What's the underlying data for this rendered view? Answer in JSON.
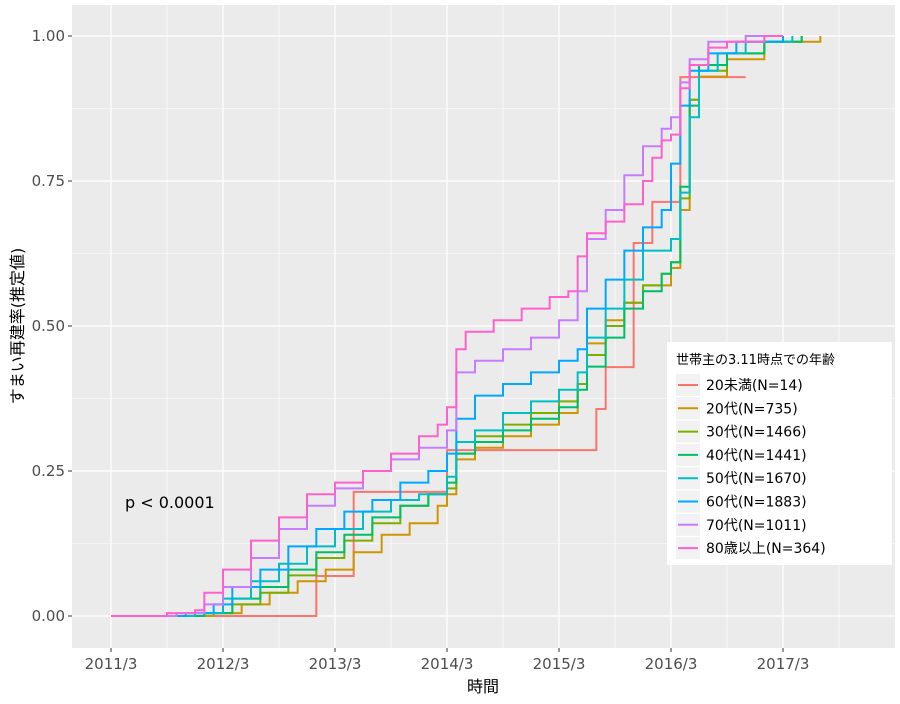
{
  "chart_data": {
    "type": "line",
    "step": true,
    "title": "",
    "xlabel": "時間",
    "ylabel": "すまい再建率(推定値)",
    "x_ticks": [
      "2011/3",
      "2012/3",
      "2013/3",
      "2014/3",
      "2015/3",
      "2016/3",
      "2017/3"
    ],
    "y_ticks": [
      "0.00",
      "0.25",
      "0.50",
      "0.75",
      "1.00"
    ],
    "xlim": [
      "2010-11",
      "2018-03"
    ],
    "ylim": [
      -0.055,
      1.053
    ],
    "grid": true,
    "annotation": "p < 0.0001",
    "legend": {
      "title": "世帯主の3.11時点での年齢",
      "placement": "right"
    },
    "series": [
      {
        "name": "20未満(N=14)",
        "color": "#F8766D",
        "points": [
          [
            "2011-03",
            0
          ],
          [
            "2013-01",
            0.069
          ],
          [
            "2013-05",
            0.214
          ],
          [
            "2014-03",
            0.286
          ],
          [
            "2015-07",
            0.357
          ],
          [
            "2015-08",
            0.429
          ],
          [
            "2015-11",
            0.643
          ],
          [
            "2016-01",
            0.714
          ],
          [
            "2016-04",
            0.929
          ],
          [
            "2016-11",
            0.929
          ]
        ]
      },
      {
        "name": "20代(N=735)",
        "color": "#CD9600",
        "points": [
          [
            "2011-03",
            0
          ],
          [
            "2012-02",
            0.005
          ],
          [
            "2012-05",
            0.02
          ],
          [
            "2012-08",
            0.04
          ],
          [
            "2012-11",
            0.06
          ],
          [
            "2013-02",
            0.08
          ],
          [
            "2013-05",
            0.11
          ],
          [
            "2013-08",
            0.14
          ],
          [
            "2013-11",
            0.16
          ],
          [
            "2014-02",
            0.19
          ],
          [
            "2014-03",
            0.21
          ],
          [
            "2014-04",
            0.27
          ],
          [
            "2014-06",
            0.29
          ],
          [
            "2014-09",
            0.31
          ],
          [
            "2014-12",
            0.33
          ],
          [
            "2015-03",
            0.35
          ],
          [
            "2015-05",
            0.4
          ],
          [
            "2015-06",
            0.47
          ],
          [
            "2015-08",
            0.51
          ],
          [
            "2015-10",
            0.54
          ],
          [
            "2015-12",
            0.57
          ],
          [
            "2016-03",
            0.6
          ],
          [
            "2016-04",
            0.7
          ],
          [
            "2016-05",
            0.89
          ],
          [
            "2016-06",
            0.93
          ],
          [
            "2016-09",
            0.96
          ],
          [
            "2017-01",
            0.99
          ],
          [
            "2017-07",
            1.0
          ],
          [
            "2017-07",
            1.0
          ]
        ]
      },
      {
        "name": "30代(N=1466)",
        "color": "#7CAE00",
        "points": [
          [
            "2011-03",
            0
          ],
          [
            "2012-01",
            0.005
          ],
          [
            "2012-04",
            0.02
          ],
          [
            "2012-07",
            0.04
          ],
          [
            "2012-10",
            0.07
          ],
          [
            "2013-01",
            0.1
          ],
          [
            "2013-04",
            0.13
          ],
          [
            "2013-07",
            0.16
          ],
          [
            "2013-10",
            0.19
          ],
          [
            "2014-01",
            0.21
          ],
          [
            "2014-03",
            0.22
          ],
          [
            "2014-04",
            0.28
          ],
          [
            "2014-06",
            0.31
          ],
          [
            "2014-09",
            0.33
          ],
          [
            "2014-12",
            0.35
          ],
          [
            "2015-03",
            0.37
          ],
          [
            "2015-05",
            0.4
          ],
          [
            "2015-06",
            0.45
          ],
          [
            "2015-08",
            0.5
          ],
          [
            "2015-10",
            0.54
          ],
          [
            "2015-12",
            0.57
          ],
          [
            "2016-02",
            0.59
          ],
          [
            "2016-03",
            0.61
          ],
          [
            "2016-04",
            0.72
          ],
          [
            "2016-05",
            0.89
          ],
          [
            "2016-06",
            0.94
          ],
          [
            "2016-09",
            0.97
          ],
          [
            "2017-01",
            0.99
          ],
          [
            "2017-05",
            1.0
          ]
        ]
      },
      {
        "name": "40代(N=1441)",
        "color": "#00BE67",
        "points": [
          [
            "2011-03",
            0
          ],
          [
            "2012-01",
            0.005
          ],
          [
            "2012-04",
            0.03
          ],
          [
            "2012-07",
            0.05
          ],
          [
            "2012-10",
            0.08
          ],
          [
            "2013-01",
            0.11
          ],
          [
            "2013-04",
            0.14
          ],
          [
            "2013-07",
            0.17
          ],
          [
            "2013-10",
            0.19
          ],
          [
            "2014-01",
            0.21
          ],
          [
            "2014-03",
            0.23
          ],
          [
            "2014-04",
            0.28
          ],
          [
            "2014-06",
            0.3
          ],
          [
            "2014-09",
            0.32
          ],
          [
            "2014-12",
            0.34
          ],
          [
            "2015-03",
            0.36
          ],
          [
            "2015-05",
            0.39
          ],
          [
            "2015-06",
            0.43
          ],
          [
            "2015-08",
            0.48
          ],
          [
            "2015-10",
            0.53
          ],
          [
            "2015-12",
            0.56
          ],
          [
            "2016-02",
            0.59
          ],
          [
            "2016-03",
            0.61
          ],
          [
            "2016-04",
            0.74
          ],
          [
            "2016-05",
            0.88
          ],
          [
            "2016-06",
            0.95
          ],
          [
            "2016-09",
            0.97
          ],
          [
            "2017-01",
            0.99
          ],
          [
            "2017-05",
            1.0
          ]
        ]
      },
      {
        "name": "50代(N=1670)",
        "color": "#00BFC4",
        "points": [
          [
            "2011-03",
            0
          ],
          [
            "2011-12",
            0.005
          ],
          [
            "2012-03",
            0.03
          ],
          [
            "2012-06",
            0.06
          ],
          [
            "2012-09",
            0.09
          ],
          [
            "2012-12",
            0.12
          ],
          [
            "2013-03",
            0.15
          ],
          [
            "2013-06",
            0.18
          ],
          [
            "2013-09",
            0.2
          ],
          [
            "2013-12",
            0.21
          ],
          [
            "2014-03",
            0.24
          ],
          [
            "2014-04",
            0.3
          ],
          [
            "2014-06",
            0.32
          ],
          [
            "2014-09",
            0.35
          ],
          [
            "2014-12",
            0.37
          ],
          [
            "2015-03",
            0.39
          ],
          [
            "2015-05",
            0.42
          ],
          [
            "2015-06",
            0.48
          ],
          [
            "2015-08",
            0.53
          ],
          [
            "2015-10",
            0.58
          ],
          [
            "2015-12",
            0.63
          ],
          [
            "2016-03",
            0.65
          ],
          [
            "2016-04",
            0.73
          ],
          [
            "2016-05",
            0.86
          ],
          [
            "2016-06",
            0.94
          ],
          [
            "2016-08",
            0.97
          ],
          [
            "2016-11",
            0.99
          ],
          [
            "2017-04",
            1.0
          ]
        ]
      },
      {
        "name": "60代(N=1883)",
        "color": "#00A9FF",
        "points": [
          [
            "2011-03",
            0
          ],
          [
            "2011-11",
            0.005
          ],
          [
            "2012-02",
            0.02
          ],
          [
            "2012-04",
            0.05
          ],
          [
            "2012-07",
            0.08
          ],
          [
            "2012-10",
            0.12
          ],
          [
            "2013-01",
            0.15
          ],
          [
            "2013-04",
            0.18
          ],
          [
            "2013-07",
            0.2
          ],
          [
            "2013-10",
            0.23
          ],
          [
            "2014-01",
            0.25
          ],
          [
            "2014-03",
            0.28
          ],
          [
            "2014-04",
            0.34
          ],
          [
            "2014-06",
            0.38
          ],
          [
            "2014-09",
            0.4
          ],
          [
            "2014-12",
            0.42
          ],
          [
            "2015-03",
            0.44
          ],
          [
            "2015-05",
            0.46
          ],
          [
            "2015-06",
            0.53
          ],
          [
            "2015-08",
            0.58
          ],
          [
            "2015-10",
            0.63
          ],
          [
            "2015-12",
            0.67
          ],
          [
            "2016-02",
            0.7
          ],
          [
            "2016-03",
            0.78
          ],
          [
            "2016-04",
            0.88
          ],
          [
            "2016-05",
            0.94
          ],
          [
            "2016-07",
            0.97
          ],
          [
            "2016-10",
            0.99
          ],
          [
            "2017-03",
            1.0
          ]
        ]
      },
      {
        "name": "70代(N=1011)",
        "color": "#C77CFF",
        "points": [
          [
            "2011-03",
            0
          ],
          [
            "2011-10",
            0.005
          ],
          [
            "2012-01",
            0.02
          ],
          [
            "2012-03",
            0.05
          ],
          [
            "2012-06",
            0.1
          ],
          [
            "2012-09",
            0.15
          ],
          [
            "2012-12",
            0.19
          ],
          [
            "2013-03",
            0.22
          ],
          [
            "2013-06",
            0.25
          ],
          [
            "2013-09",
            0.27
          ],
          [
            "2013-12",
            0.29
          ],
          [
            "2014-03",
            0.32
          ],
          [
            "2014-04",
            0.42
          ],
          [
            "2014-06",
            0.44
          ],
          [
            "2014-09",
            0.46
          ],
          [
            "2014-12",
            0.48
          ],
          [
            "2015-03",
            0.51
          ],
          [
            "2015-05",
            0.56
          ],
          [
            "2015-06",
            0.65
          ],
          [
            "2015-08",
            0.7
          ],
          [
            "2015-10",
            0.76
          ],
          [
            "2015-12",
            0.81
          ],
          [
            "2016-02",
            0.84
          ],
          [
            "2016-03",
            0.86
          ],
          [
            "2016-04",
            0.92
          ],
          [
            "2016-05",
            0.96
          ],
          [
            "2016-07",
            0.99
          ],
          [
            "2016-11",
            1.0
          ],
          [
            "2017-03",
            1.0
          ]
        ]
      },
      {
        "name": "80歳以上(N=364)",
        "color": "#FF61CC",
        "points": [
          [
            "2011-03",
            0
          ],
          [
            "2011-09",
            0.005
          ],
          [
            "2011-12",
            0.01
          ],
          [
            "2012-01",
            0.04
          ],
          [
            "2012-03",
            0.08
          ],
          [
            "2012-06",
            0.13
          ],
          [
            "2012-09",
            0.17
          ],
          [
            "2012-12",
            0.21
          ],
          [
            "2013-03",
            0.23
          ],
          [
            "2013-06",
            0.25
          ],
          [
            "2013-09",
            0.28
          ],
          [
            "2013-12",
            0.31
          ],
          [
            "2014-02",
            0.33
          ],
          [
            "2014-03",
            0.36
          ],
          [
            "2014-04",
            0.46
          ],
          [
            "2014-05",
            0.49
          ],
          [
            "2014-08",
            0.51
          ],
          [
            "2014-11",
            0.53
          ],
          [
            "2015-02",
            0.55
          ],
          [
            "2015-04",
            0.56
          ],
          [
            "2015-05",
            0.62
          ],
          [
            "2015-06",
            0.66
          ],
          [
            "2015-08",
            0.68
          ],
          [
            "2015-10",
            0.71
          ],
          [
            "2015-12",
            0.75
          ],
          [
            "2016-01",
            0.79
          ],
          [
            "2016-02",
            0.82
          ],
          [
            "2016-03",
            0.83
          ],
          [
            "2016-04",
            0.91
          ],
          [
            "2016-05",
            0.95
          ],
          [
            "2016-07",
            0.98
          ],
          [
            "2016-09",
            0.99
          ],
          [
            "2017-01",
            1.0
          ],
          [
            "2017-03",
            1.0
          ]
        ]
      }
    ]
  }
}
